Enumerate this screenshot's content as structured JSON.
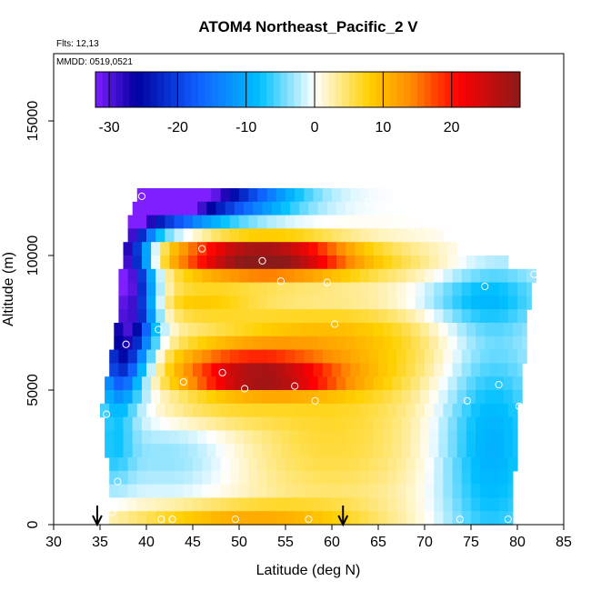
{
  "chart_data": {
    "type": "heatmap",
    "title": "ATOM4 Northeast_Pacific_2 V",
    "flights_label": "Flts: 12,13",
    "dates_label": "MMDD: 0519,0521",
    "xlabel": "Latitude (deg N)",
    "ylabel": "Altitude (m)",
    "xlim": [
      30,
      85
    ],
    "ylim": [
      0,
      17500
    ],
    "x_ticks": [
      30,
      35,
      40,
      45,
      50,
      55,
      60,
      65,
      70,
      75,
      80,
      85
    ],
    "y_ticks": [
      0,
      5000,
      10000,
      15000
    ],
    "colorbar": {
      "range": [
        -32,
        30
      ],
      "ticks": [
        -30,
        -20,
        -10,
        0,
        10,
        20
      ],
      "colors": [
        "#7f1fff",
        "#0000a0",
        "#1060ff",
        "#00c0ff",
        "#ffffff",
        "#ffd000",
        "#ff8c00",
        "#ff0000",
        "#8b1a1a"
      ]
    },
    "grid": false,
    "grid_rows": [
      {
        "alt": 12250,
        "lat_min": 39,
        "lat_max": 66.5
      },
      {
        "alt": 11750,
        "lat_min": 38.5,
        "lat_max": 69
      },
      {
        "alt": 11250,
        "lat_min": 38,
        "lat_max": 70.5
      },
      {
        "alt": 10750,
        "lat_min": 38,
        "lat_max": 72
      },
      {
        "alt": 10250,
        "lat_min": 37.5,
        "lat_max": 73.5
      },
      {
        "alt": 9750,
        "lat_min": 37.5,
        "lat_max": 79
      },
      {
        "alt": 9250,
        "lat_min": 37,
        "lat_max": 82
      },
      {
        "alt": 8750,
        "lat_min": 37,
        "lat_max": 81.5
      },
      {
        "alt": 8250,
        "lat_min": 37,
        "lat_max": 81.5
      },
      {
        "alt": 7750,
        "lat_min": 37,
        "lat_max": 81
      },
      {
        "alt": 7250,
        "lat_min": 36.5,
        "lat_max": 81
      },
      {
        "alt": 6750,
        "lat_min": 36.5,
        "lat_max": 81
      },
      {
        "alt": 6250,
        "lat_min": 36,
        "lat_max": 81
      },
      {
        "alt": 5750,
        "lat_min": 36,
        "lat_max": 80.5
      },
      {
        "alt": 5250,
        "lat_min": 35.5,
        "lat_max": 80.5
      },
      {
        "alt": 4750,
        "lat_min": 35.5,
        "lat_max": 80.5
      },
      {
        "alt": 4250,
        "lat_min": 35,
        "lat_max": 80
      },
      {
        "alt": 3750,
        "lat_min": 35.5,
        "lat_max": 80
      },
      {
        "alt": 3250,
        "lat_min": 35.5,
        "lat_max": 80
      },
      {
        "alt": 2750,
        "lat_min": 35.5,
        "lat_max": 80
      },
      {
        "alt": 2250,
        "lat_min": 36,
        "lat_max": 80
      },
      {
        "alt": 1750,
        "lat_min": 36,
        "lat_max": 79.5
      },
      {
        "alt": 1250,
        "lat_min": 36,
        "lat_max": 79.5
      },
      {
        "alt": 750,
        "lat_min": 36,
        "lat_max": 79.5
      },
      {
        "alt": 250,
        "lat_min": 36,
        "lat_max": 79.5
      }
    ],
    "features": [
      {
        "lat": 40.5,
        "alt": 12000,
        "v": -30,
        "sx": 4,
        "sy": 700
      },
      {
        "lat": 46,
        "alt": 12200,
        "v": -20,
        "sx": 5,
        "sy": 600
      },
      {
        "lat": 52,
        "alt": 12150,
        "v": -8,
        "sx": 5,
        "sy": 500
      },
      {
        "lat": 37.5,
        "alt": 10000,
        "v": -28,
        "sx": 2,
        "sy": 1900
      },
      {
        "lat": 38.5,
        "alt": 7500,
        "v": -18,
        "sx": 2,
        "sy": 1500
      },
      {
        "lat": 37,
        "alt": 5800,
        "v": -14,
        "sx": 1.5,
        "sy": 1000
      },
      {
        "lat": 36.5,
        "alt": 3000,
        "v": -6,
        "sx": 1.5,
        "sy": 1200
      },
      {
        "lat": 52,
        "alt": 10100,
        "v": 22,
        "sx": 7,
        "sy": 450
      },
      {
        "lat": 53,
        "alt": 9700,
        "v": 14,
        "sx": 7,
        "sy": 450
      },
      {
        "lat": 52,
        "alt": 5400,
        "v": 23,
        "sx": 6,
        "sy": 380
      },
      {
        "lat": 50,
        "alt": 6200,
        "v": 11,
        "sx": 6,
        "sy": 450
      },
      {
        "lat": 60,
        "alt": 7000,
        "v": 9,
        "sx": 10,
        "sy": 1500
      },
      {
        "lat": 60,
        "alt": 3000,
        "v": 6,
        "sx": 8,
        "sy": 2200
      },
      {
        "lat": 50,
        "alt": 300,
        "v": 10,
        "sx": 9,
        "sy": 350
      },
      {
        "lat": 43,
        "alt": 2500,
        "v": -4,
        "sx": 5,
        "sy": 1000
      },
      {
        "lat": 77,
        "alt": 3000,
        "v": -10,
        "sx": 4,
        "sy": 3500
      },
      {
        "lat": 76,
        "alt": 8500,
        "v": -7,
        "sx": 5,
        "sy": 900
      },
      {
        "lat": 71,
        "alt": 9700,
        "v": 3,
        "sx": 5,
        "sy": 600
      },
      {
        "lat": 61,
        "alt": 8300,
        "v": -3,
        "sx": 9,
        "sy": 500
      },
      {
        "lat": 45,
        "alt": 8300,
        "v": 7,
        "sx": 5,
        "sy": 500
      },
      {
        "lat": 47,
        "alt": 4200,
        "v": 4,
        "sx": 5,
        "sy": 450
      }
    ],
    "sample_points": [
      {
        "lat": 39.5,
        "alt": 12200
      },
      {
        "lat": 64,
        "alt": 12000
      },
      {
        "lat": 66.5,
        "alt": 12050
      },
      {
        "lat": 69,
        "alt": 11000
      },
      {
        "lat": 46,
        "alt": 10250
      },
      {
        "lat": 52.5,
        "alt": 9800
      },
      {
        "lat": 54.5,
        "alt": 9050
      },
      {
        "lat": 59.5,
        "alt": 9000
      },
      {
        "lat": 76.5,
        "alt": 8850
      },
      {
        "lat": 81.8,
        "alt": 9300
      },
      {
        "lat": 41.3,
        "alt": 7250
      },
      {
        "lat": 60.3,
        "alt": 7450
      },
      {
        "lat": 37.8,
        "alt": 6700
      },
      {
        "lat": 48.2,
        "alt": 5650
      },
      {
        "lat": 44,
        "alt": 5300
      },
      {
        "lat": 50.6,
        "alt": 5050
      },
      {
        "lat": 56,
        "alt": 5150
      },
      {
        "lat": 58.2,
        "alt": 4600
      },
      {
        "lat": 74.6,
        "alt": 4600
      },
      {
        "lat": 78,
        "alt": 5200
      },
      {
        "lat": 80.2,
        "alt": 4400
      },
      {
        "lat": 35.7,
        "alt": 4100
      },
      {
        "lat": 36.9,
        "alt": 1600
      },
      {
        "lat": 36.7,
        "alt": 800
      },
      {
        "lat": 36.3,
        "alt": 450
      },
      {
        "lat": 41.6,
        "alt": 200
      },
      {
        "lat": 42.8,
        "alt": 200
      },
      {
        "lat": 49.6,
        "alt": 200
      },
      {
        "lat": 57.5,
        "alt": 200
      },
      {
        "lat": 73.8,
        "alt": 200
      },
      {
        "lat": 79,
        "alt": 200
      }
    ],
    "arrows_lat": [
      34.7,
      61.2
    ]
  }
}
